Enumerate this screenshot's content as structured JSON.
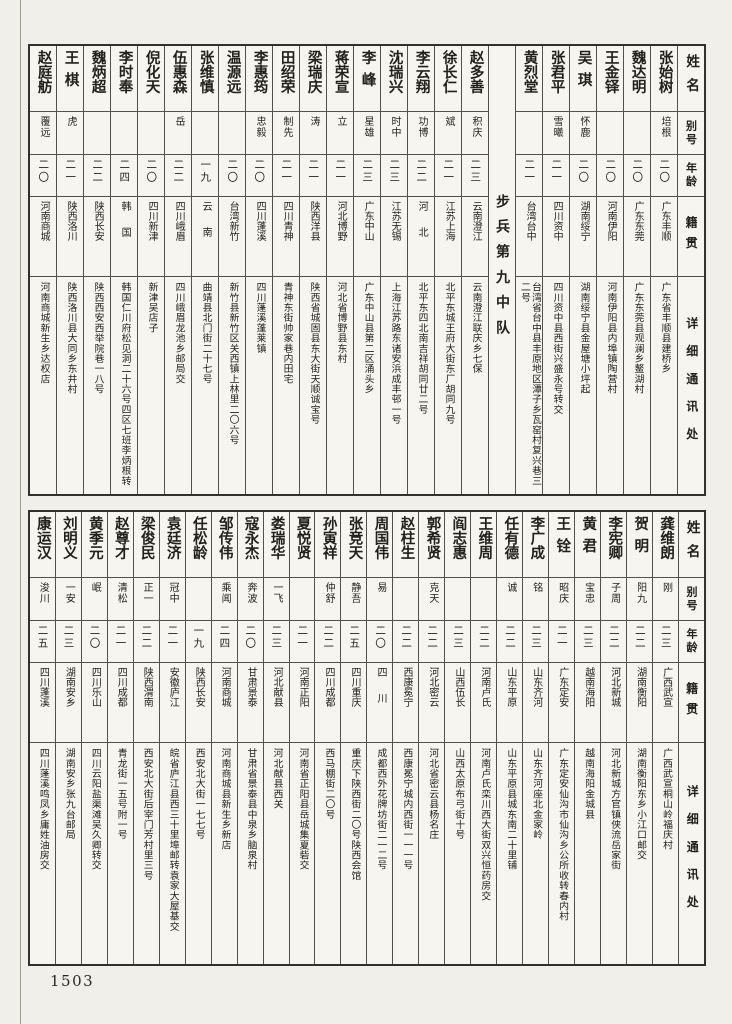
{
  "page": {
    "number": "1503"
  },
  "headers": {
    "name": "姓名",
    "alias": "别号",
    "age": "年龄",
    "origin": "籍贯",
    "address": "详细通讯处"
  },
  "top_table": {
    "people": [
      {
        "name": "张始树",
        "alias": "培根",
        "age": "二〇",
        "origin": "广东丰顺",
        "address": "广东省丰顺县建桥乡"
      },
      {
        "name": "魏达明",
        "alias": "",
        "age": "二〇",
        "origin": "广东东莞",
        "address": "广东东莞县观澜乡鳌湖村"
      },
      {
        "name": "王金铎",
        "alias": "",
        "age": "二〇",
        "origin": "河南伊阳",
        "address": "河南伊阳县内埠镇陶营村"
      },
      {
        "name": "吴琪",
        "alias": "怀鹿",
        "age": "二〇",
        "origin": "湖南绥宁",
        "address": "湖南绥宁县金屋塘小坪起"
      },
      {
        "name": "张君平",
        "alias": "雪曦",
        "age": "二一",
        "origin": "四川资中",
        "address": "四川资中县西街兴盛永号转交"
      },
      {
        "name": "黄烈堂",
        "alias": "",
        "age": "二一",
        "origin": "台湾台中",
        "address": "台湾省台中县丰原地区潭子乡瓦窑村复兴巷三二号"
      },
      {
        "unit": "步兵第九中队"
      },
      {
        "name": "赵多善",
        "alias": "积庆",
        "age": "二三",
        "origin": "云南澄江",
        "address": "云南澄江联庆乡七保"
      },
      {
        "name": "徐长仁",
        "alias": "斌",
        "age": "二一",
        "origin": "江苏上海",
        "address": "北平东城王府大街东厂胡同九号"
      },
      {
        "name": "李云翔",
        "alias": "功博",
        "age": "二二",
        "origin": "河北",
        "address": "北平东四北南吉祥胡同廿二号"
      },
      {
        "name": "沈瑞兴",
        "alias": "时中",
        "age": "二三",
        "origin": "江苏无锡",
        "address": "上海江苏路东诸安浜成丰邨一号"
      },
      {
        "name": "李峰",
        "alias": "星雄",
        "age": "二三",
        "origin": "广东中山",
        "address": "广东中山县第二区涌头乡"
      },
      {
        "name": "蒋荣宣",
        "alias": "立",
        "age": "二一",
        "origin": "河北博野",
        "address": "河北省博野县东村"
      },
      {
        "name": "梁瑞庆",
        "alias": "涛",
        "age": "二一",
        "origin": "陕西洋县",
        "address": "陕西省城固县东大街天顺诚宝号"
      },
      {
        "name": "田绍荣",
        "alias": "制先",
        "age": "二一",
        "origin": "四川青神",
        "address": "青神东街帅家巷内田宅"
      },
      {
        "name": "李惠筠",
        "alias": "忠毅",
        "age": "二〇",
        "origin": "四川蓬溪",
        "address": "四川蓬溪蓬莱镇"
      },
      {
        "name": "温源远",
        "alias": "",
        "age": "二〇",
        "origin": "台湾新竹",
        "address": "新竹县新竹区关西镇上林里二〇六号"
      },
      {
        "name": "张维慎",
        "alias": "",
        "age": "一九",
        "origin": "云南",
        "address": "曲靖县北门街二十七号"
      },
      {
        "name": "伍惠森",
        "alias": "岳",
        "age": "二二",
        "origin": "四川峨眉",
        "address": "四川峨眉龙池乡邮局交"
      },
      {
        "name": "倪化天",
        "alias": "",
        "age": "二〇",
        "origin": "四川新津",
        "address": "新津吴店子"
      },
      {
        "name": "李时奉",
        "alias": "",
        "age": "二四",
        "origin": "韩国",
        "address": "韩国仁川府松见洞二十六号四区七班李炳根转"
      },
      {
        "name": "魏炳超",
        "alias": "",
        "age": "二二",
        "origin": "陕西长安",
        "address": "陕西西安西举院巷一八号"
      },
      {
        "name": "王棋",
        "alias": "虎",
        "age": "二一",
        "origin": "陕西洛川",
        "address": "陕西洛川县大同乡东井村"
      },
      {
        "name": "赵庭舫",
        "alias": "覆远",
        "age": "二〇",
        "origin": "河南商城",
        "address": "河南商城新生乡达权店"
      }
    ]
  },
  "bottom_table": {
    "people": [
      {
        "name": "龚维朗",
        "alias": "刚",
        "age": "二三",
        "origin": "广西武宣",
        "address": "广西武宣桐山岭福庆村"
      },
      {
        "name": "贺明",
        "alias": "阳九",
        "age": "二二",
        "origin": "湖南衡阳",
        "address": "湖南衡阳东乡小江口邮交"
      },
      {
        "name": "李宪卿",
        "alias": "子周",
        "age": "二二",
        "origin": "河北新城",
        "address": "河北新城方官镇侠流岳家街"
      },
      {
        "name": "黄君",
        "alias": "宝忠",
        "age": "二三",
        "origin": "越南海阳",
        "address": "越南海阳金城县"
      },
      {
        "name": "王铨",
        "alias": "昭庆",
        "age": "二一",
        "origin": "广东定安",
        "address": "广东定安仙沟市仙沟乡公所收转春内村"
      },
      {
        "name": "李广成",
        "alias": "铭",
        "age": "二三",
        "origin": "山东齐河",
        "address": "山东齐河座北金家岭"
      },
      {
        "name": "任有德",
        "alias": "诚",
        "age": "二二",
        "origin": "山东平原",
        "address": "山东平原县城东南二十里铺"
      },
      {
        "name": "王维周",
        "alias": "",
        "age": "二二",
        "origin": "河南卢氏",
        "address": "河南卢氏栾川西大街双兴恒药房交"
      },
      {
        "name": "阎志惠",
        "alias": "",
        "age": "二三",
        "origin": "山西伍长",
        "address": "山西太原布弓街十号"
      },
      {
        "name": "郭希贤",
        "alias": "克天",
        "age": "二二",
        "origin": "河北密云",
        "address": "河北省密云县杨名庄"
      },
      {
        "name": "赵柱生",
        "alias": "",
        "age": "二二",
        "origin": "西康冕宁",
        "address": "西康冕宁城内西街一一一号"
      },
      {
        "name": "周国伟",
        "alias": "易",
        "age": "二〇",
        "origin": "四川",
        "address": "成都西外花牌坊街二一二号"
      },
      {
        "name": "张竞天",
        "alias": "静吾",
        "age": "二五",
        "origin": "四川重庆",
        "address": "重庆下陕西街二〇号陕西会馆"
      },
      {
        "name": "孙寅祥",
        "alias": "仲舒",
        "age": "二二",
        "origin": "四川成都",
        "address": "西马棚街二〇号"
      },
      {
        "name": "夏悦贤",
        "alias": "",
        "age": "二一",
        "origin": "河南正阳",
        "address": "河南省正阳县岳城集夏砦交"
      },
      {
        "name": "娄瑞华",
        "alias": "一飞",
        "age": "二三",
        "origin": "河北献县",
        "address": "河北献县西关"
      },
      {
        "name": "寇永杰",
        "alias": "奔波",
        "age": "二〇",
        "origin": "甘肃景泰",
        "address": "甘肃省景泰县中泉乡脑泉村"
      },
      {
        "name": "邹传伟",
        "alias": "乘闻",
        "age": "二四",
        "origin": "河南商城",
        "address": "河南商城县新生乡新店"
      },
      {
        "name": "任松龄",
        "alias": "",
        "age": "一九",
        "origin": "陕西长安",
        "address": "西安北大街一七七号"
      },
      {
        "name": "袁廷济",
        "alias": "冠中",
        "age": "二一",
        "origin": "安徽庐江",
        "address": "皖省庐江县西三十里埠邮转袁家大屋基交"
      },
      {
        "name": "梁俊民",
        "alias": "正一",
        "age": "二二",
        "origin": "陕西渭南",
        "address": "西安北大街后宰门芳村里三号"
      },
      {
        "name": "赵尊才",
        "alias": "清松",
        "age": "二一",
        "origin": "四川成都",
        "address": "青龙街一五号附一号"
      },
      {
        "name": "黄季元",
        "alias": "岷",
        "age": "二〇",
        "origin": "四川乐山",
        "address": "四川云阳盐渠滩吴久卿转交"
      },
      {
        "name": "刘明义",
        "alias": "一安",
        "age": "二三",
        "origin": "湖南安乡",
        "address": "湖南安乡张九台邮局"
      },
      {
        "name": "康运汉",
        "alias": "浚川",
        "age": "二五",
        "origin": "四川蓬溪",
        "address": "四川蓬溪鸣凤乡庸姓油房交"
      }
    ]
  }
}
